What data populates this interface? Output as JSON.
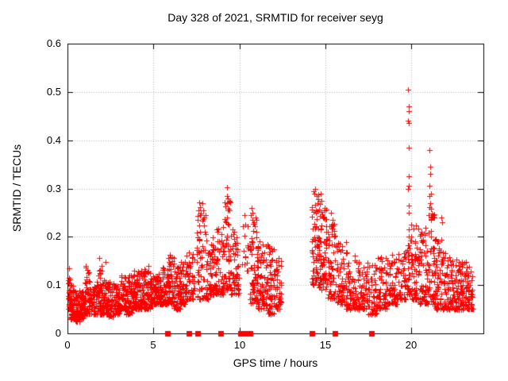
{
  "window": {
    "background": "#ffffff"
  },
  "chart_data": {
    "type": "scatter",
    "title": "Day 328 of 2021, SRMTID for receiver seyg",
    "xlabel": "GPS time / hours",
    "ylabel": "SRMTID / TECUs",
    "xlim": [
      0,
      24.2
    ],
    "ylim": [
      0,
      0.6
    ],
    "x_tick_values": [
      0,
      5,
      10,
      15,
      20
    ],
    "x_tick_labels": [
      "0",
      "5",
      "10",
      "15",
      "20"
    ],
    "y_tick_values": [
      0,
      0.1,
      0.2,
      0.3,
      0.4,
      0.5,
      0.6
    ],
    "y_tick_labels": [
      "0",
      "0.1",
      "0.2",
      "0.3",
      "0.4",
      "0.5",
      "0.6"
    ],
    "grid": true,
    "legend": "none",
    "marker": "plus",
    "marker_size_px": 7,
    "marker_color": "#ff0000",
    "grid_color": "#b8b8b8",
    "axis_color": "#000000",
    "seed": 42,
    "dense_segments_comment": "each segment = [t_start_h, t_end_h, n_points, y_min_TECU, y_max_TECU] describing the dense scatter cloud; gap 12.45-14.2 h has no data",
    "dense_segments": [
      [
        0.05,
        0.15,
        25,
        0.05,
        0.13
      ],
      [
        0.15,
        0.45,
        55,
        0.03,
        0.1
      ],
      [
        0.45,
        0.75,
        50,
        0.025,
        0.09
      ],
      [
        0.75,
        1.0,
        45,
        0.03,
        0.09
      ],
      [
        1.0,
        1.35,
        55,
        0.04,
        0.14
      ],
      [
        1.35,
        1.7,
        50,
        0.04,
        0.1
      ],
      [
        1.7,
        2.0,
        50,
        0.04,
        0.15
      ],
      [
        2.0,
        2.35,
        50,
        0.04,
        0.11
      ],
      [
        2.35,
        2.7,
        50,
        0.035,
        0.11
      ],
      [
        2.7,
        3.05,
        55,
        0.04,
        0.1
      ],
      [
        3.05,
        3.4,
        50,
        0.05,
        0.12
      ],
      [
        3.4,
        3.75,
        50,
        0.04,
        0.12
      ],
      [
        3.75,
        4.1,
        55,
        0.05,
        0.13
      ],
      [
        4.1,
        4.45,
        55,
        0.05,
        0.13
      ],
      [
        4.45,
        4.8,
        55,
        0.05,
        0.135
      ],
      [
        4.8,
        5.15,
        50,
        0.06,
        0.12
      ],
      [
        5.15,
        5.5,
        50,
        0.06,
        0.13
      ],
      [
        5.5,
        5.85,
        50,
        0.06,
        0.14
      ],
      [
        5.85,
        6.2,
        55,
        0.06,
        0.16
      ],
      [
        6.2,
        6.55,
        50,
        0.05,
        0.14
      ],
      [
        6.55,
        6.9,
        45,
        0.06,
        0.15
      ],
      [
        6.9,
        7.4,
        55,
        0.07,
        0.17
      ],
      [
        7.5,
        8.2,
        70,
        0.07,
        0.25
      ],
      [
        8.2,
        8.6,
        50,
        0.08,
        0.2
      ],
      [
        8.6,
        9.05,
        50,
        0.08,
        0.22
      ],
      [
        9.05,
        9.5,
        55,
        0.09,
        0.28
      ],
      [
        9.5,
        10.0,
        55,
        0.08,
        0.22
      ],
      [
        10.15,
        10.55,
        14,
        0.13,
        0.23
      ],
      [
        10.6,
        11.05,
        60,
        0.06,
        0.25
      ],
      [
        11.05,
        11.55,
        65,
        0.05,
        0.2
      ],
      [
        11.55,
        12.05,
        65,
        0.04,
        0.19
      ],
      [
        12.05,
        12.45,
        45,
        0.05,
        0.16
      ],
      [
        14.2,
        14.65,
        65,
        0.1,
        0.29
      ],
      [
        14.65,
        15.1,
        65,
        0.09,
        0.27
      ],
      [
        15.1,
        15.65,
        60,
        0.07,
        0.23
      ],
      [
        15.65,
        16.2,
        55,
        0.06,
        0.19
      ],
      [
        16.2,
        16.8,
        60,
        0.05,
        0.17
      ],
      [
        16.8,
        17.4,
        60,
        0.05,
        0.15
      ],
      [
        17.4,
        18.0,
        60,
        0.04,
        0.15
      ],
      [
        18.0,
        18.6,
        60,
        0.05,
        0.16
      ],
      [
        18.6,
        19.2,
        55,
        0.06,
        0.17
      ],
      [
        19.2,
        19.7,
        45,
        0.07,
        0.17
      ],
      [
        19.75,
        19.95,
        25,
        0.08,
        0.2
      ],
      [
        20.0,
        20.5,
        60,
        0.07,
        0.23
      ],
      [
        20.5,
        21.0,
        60,
        0.06,
        0.22
      ],
      [
        21.0,
        21.4,
        55,
        0.06,
        0.25
      ],
      [
        21.4,
        21.9,
        60,
        0.05,
        0.2
      ],
      [
        21.9,
        22.4,
        60,
        0.05,
        0.17
      ],
      [
        22.4,
        22.9,
        55,
        0.05,
        0.16
      ],
      [
        22.9,
        23.3,
        50,
        0.05,
        0.15
      ],
      [
        23.3,
        23.62,
        35,
        0.05,
        0.16
      ]
    ],
    "outlier_points_comment": "individually visible high [hour, TECU] points",
    "outlier_points": [
      [
        0.08,
        0.135
      ],
      [
        1.85,
        0.156
      ],
      [
        2.2,
        0.148
      ],
      [
        4.72,
        0.14
      ],
      [
        5.95,
        0.163
      ],
      [
        6.08,
        0.158
      ],
      [
        7.58,
        0.235
      ],
      [
        7.62,
        0.255
      ],
      [
        7.65,
        0.272
      ],
      [
        7.7,
        0.262
      ],
      [
        7.75,
        0.248
      ],
      [
        7.85,
        0.27
      ],
      [
        7.88,
        0.255
      ],
      [
        7.95,
        0.24
      ],
      [
        9.26,
        0.27
      ],
      [
        9.28,
        0.302
      ],
      [
        9.3,
        0.285
      ],
      [
        9.3,
        0.24
      ],
      [
        9.33,
        0.255
      ],
      [
        9.36,
        0.225
      ],
      [
        10.3,
        0.245
      ],
      [
        10.35,
        0.225
      ],
      [
        10.68,
        0.245
      ],
      [
        10.72,
        0.26
      ],
      [
        10.75,
        0.235
      ],
      [
        10.78,
        0.25
      ],
      [
        11.0,
        0.21
      ],
      [
        14.3,
        0.295
      ],
      [
        14.35,
        0.29
      ],
      [
        14.42,
        0.3
      ],
      [
        14.48,
        0.285
      ],
      [
        14.55,
        0.27
      ],
      [
        14.75,
        0.29
      ],
      [
        14.8,
        0.275
      ],
      [
        14.95,
        0.26
      ],
      [
        15.35,
        0.25
      ],
      [
        15.42,
        0.235
      ],
      [
        19.82,
        0.3
      ],
      [
        19.83,
        0.505
      ],
      [
        19.83,
        0.44
      ],
      [
        19.84,
        0.325
      ],
      [
        19.84,
        0.25
      ],
      [
        19.85,
        0.47
      ],
      [
        19.85,
        0.385
      ],
      [
        19.85,
        0.215
      ],
      [
        19.86,
        0.435
      ],
      [
        19.86,
        0.265
      ],
      [
        19.87,
        0.46
      ],
      [
        19.87,
        0.305
      ],
      [
        19.88,
        0.2
      ],
      [
        21.03,
        0.245
      ],
      [
        21.05,
        0.38
      ],
      [
        21.06,
        0.305
      ],
      [
        21.07,
        0.262
      ],
      [
        21.08,
        0.285
      ],
      [
        21.1,
        0.345
      ],
      [
        21.1,
        0.27
      ],
      [
        21.12,
        0.33
      ],
      [
        21.13,
        0.258
      ],
      [
        21.15,
        0.29
      ],
      [
        21.2,
        0.24
      ],
      [
        21.75,
        0.24
      ],
      [
        21.8,
        0.23
      ]
    ],
    "gap_markers_comment": "red squares drawn on the y=0 axis line at these hours",
    "gap_markers": {
      "singles": [
        5.81,
        7.06,
        7.57,
        8.91,
        14.21,
        15.55,
        17.67
      ],
      "ranges": [
        [
          10.06,
          10.61
        ]
      ]
    }
  }
}
